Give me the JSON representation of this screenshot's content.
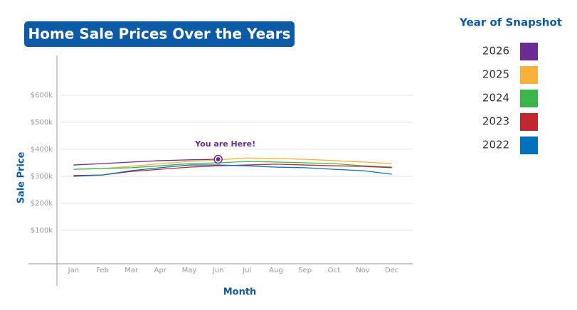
{
  "chart_data": {
    "type": "line",
    "title": "Home Sale Prices Over the Years",
    "xlabel": "Month",
    "ylabel": "Sale Price",
    "legend_title": "Year of Snapshot",
    "annotation": "You are Here!",
    "categories": [
      "Jan",
      "Feb",
      "Mar",
      "Apr",
      "May",
      "Jun",
      "Jul",
      "Aug",
      "Sep",
      "Oct",
      "Nov",
      "Dec"
    ],
    "series": [
      {
        "name": "2026",
        "color": "#6b2c91",
        "values": [
          342000,
          347000,
          353000,
          358000,
          361000,
          363000,
          null,
          null,
          null,
          null,
          null,
          null
        ]
      },
      {
        "name": "2025",
        "color": "#fbb03b",
        "values": [
          326000,
          329000,
          337000,
          347000,
          355000,
          361000,
          368000,
          366000,
          363000,
          358000,
          353000,
          347000
        ]
      },
      {
        "name": "2024",
        "color": "#39b54a",
        "values": [
          326000,
          329000,
          332000,
          339000,
          347000,
          350000,
          355000,
          353000,
          350000,
          347000,
          339000,
          334000
        ]
      },
      {
        "name": "2023",
        "color": "#c1272d",
        "values": [
          303000,
          305000,
          318000,
          326000,
          334000,
          339000,
          342000,
          345000,
          342000,
          339000,
          337000,
          332000
        ]
      },
      {
        "name": "2022",
        "color": "#0071bc",
        "values": [
          300000,
          305000,
          321000,
          332000,
          342000,
          342000,
          339000,
          334000,
          332000,
          326000,
          321000,
          308000
        ]
      }
    ],
    "ylim": [
      -25000,
      700000
    ],
    "yticks": [
      {
        "value": 100000,
        "label": "$100k"
      },
      {
        "value": 200000,
        "label": "$200k"
      },
      {
        "value": 300000,
        "label": "$300k"
      },
      {
        "value": 400000,
        "label": "$400k"
      },
      {
        "value": 500000,
        "label": "$500k"
      },
      {
        "value": 600000,
        "label": "$600k"
      }
    ],
    "grid": true,
    "legend": "right"
  }
}
